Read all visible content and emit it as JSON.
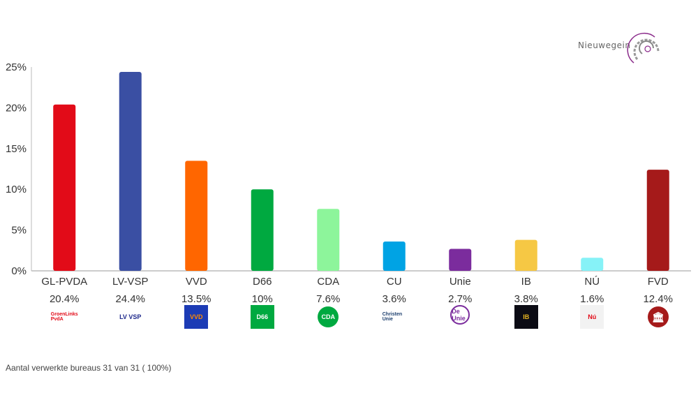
{
  "brand": {
    "name": "Nieuwegein"
  },
  "footer": {
    "text": "Aantal verwerkte bureaus 31 van 31 ( 100%)"
  },
  "chart_data": {
    "type": "bar",
    "title": "",
    "xlabel": "",
    "ylabel": "",
    "ylim": [
      0,
      25
    ],
    "yticks": [
      "0%",
      "5%",
      "10%",
      "15%",
      "20%",
      "25%"
    ],
    "grid": false,
    "categories": [
      "GL-PVDA",
      "LV-VSP",
      "VVD",
      "D66",
      "CDA",
      "CU",
      "Unie",
      "IB",
      "NÚ",
      "FVD"
    ],
    "values": [
      20.4,
      24.4,
      13.5,
      10,
      7.6,
      3.6,
      2.7,
      3.8,
      1.6,
      12.4
    ],
    "value_labels": [
      "20.4%",
      "24.4%",
      "13.5%",
      "10%",
      "7.6%",
      "3.6%",
      "2.7%",
      "3.8%",
      "1.6%",
      "12.4%"
    ],
    "colors": [
      "#e20b18",
      "#3a4fa3",
      "#ff6600",
      "#00a940",
      "#8df59b",
      "#00a3e4",
      "#7b2c9d",
      "#f6c844",
      "#86f2f7",
      "#a51a1a"
    ],
    "logos": [
      {
        "text": "GroenLinks PvdA",
        "bg": "#ffffff",
        "fg": "#e20b18"
      },
      {
        "text": "LV VSP",
        "bg": "#ffffff",
        "fg": "#1f2a8c"
      },
      {
        "text": "VVD",
        "bg": "#1c3bb5",
        "fg": "#ff8a00"
      },
      {
        "text": "D66",
        "bg": "#00a940",
        "fg": "#ffffff"
      },
      {
        "text": "CDA",
        "bg": "#ffffff",
        "fg": "#00a940"
      },
      {
        "text": "Christen Unie",
        "bg": "#ffffff",
        "fg": "#1d3f6e"
      },
      {
        "text": "De Unie",
        "bg": "#ffffff",
        "fg": "#7b2c9d"
      },
      {
        "text": "IB",
        "bg": "#0b0b14",
        "fg": "#e6b422"
      },
      {
        "text": "Nú",
        "bg": "#f2f2f2",
        "fg": "#e20b18"
      },
      {
        "text": "FVD",
        "bg": "#ffffff",
        "fg": "#a51a1a"
      }
    ]
  }
}
